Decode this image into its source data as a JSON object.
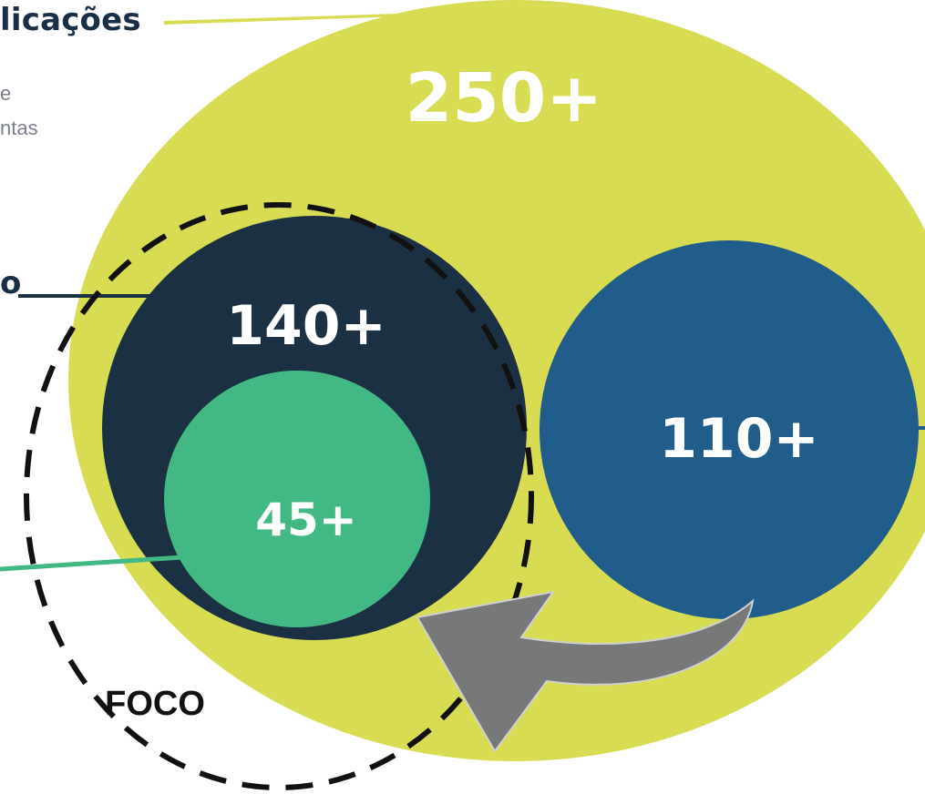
{
  "header": {
    "title_partial": "licações",
    "description_line1_partial": "e",
    "description_line2_partial": "ntas",
    "left_label_partial": "o"
  },
  "diagram": {
    "outer_total": "250+",
    "dark_group": "140+",
    "green_subgroup": "45+",
    "blue_group": "110+",
    "focus_label": "FOCO"
  },
  "colors": {
    "outer": "#d8dc52",
    "dark": "#1b3143",
    "green": "#42b984",
    "blue": "#215d8a",
    "arrow": "#77787a",
    "title": "#1a2f45",
    "description": "#7a7f8c"
  },
  "icons": {
    "arrow": "curved-arrow-icon"
  }
}
